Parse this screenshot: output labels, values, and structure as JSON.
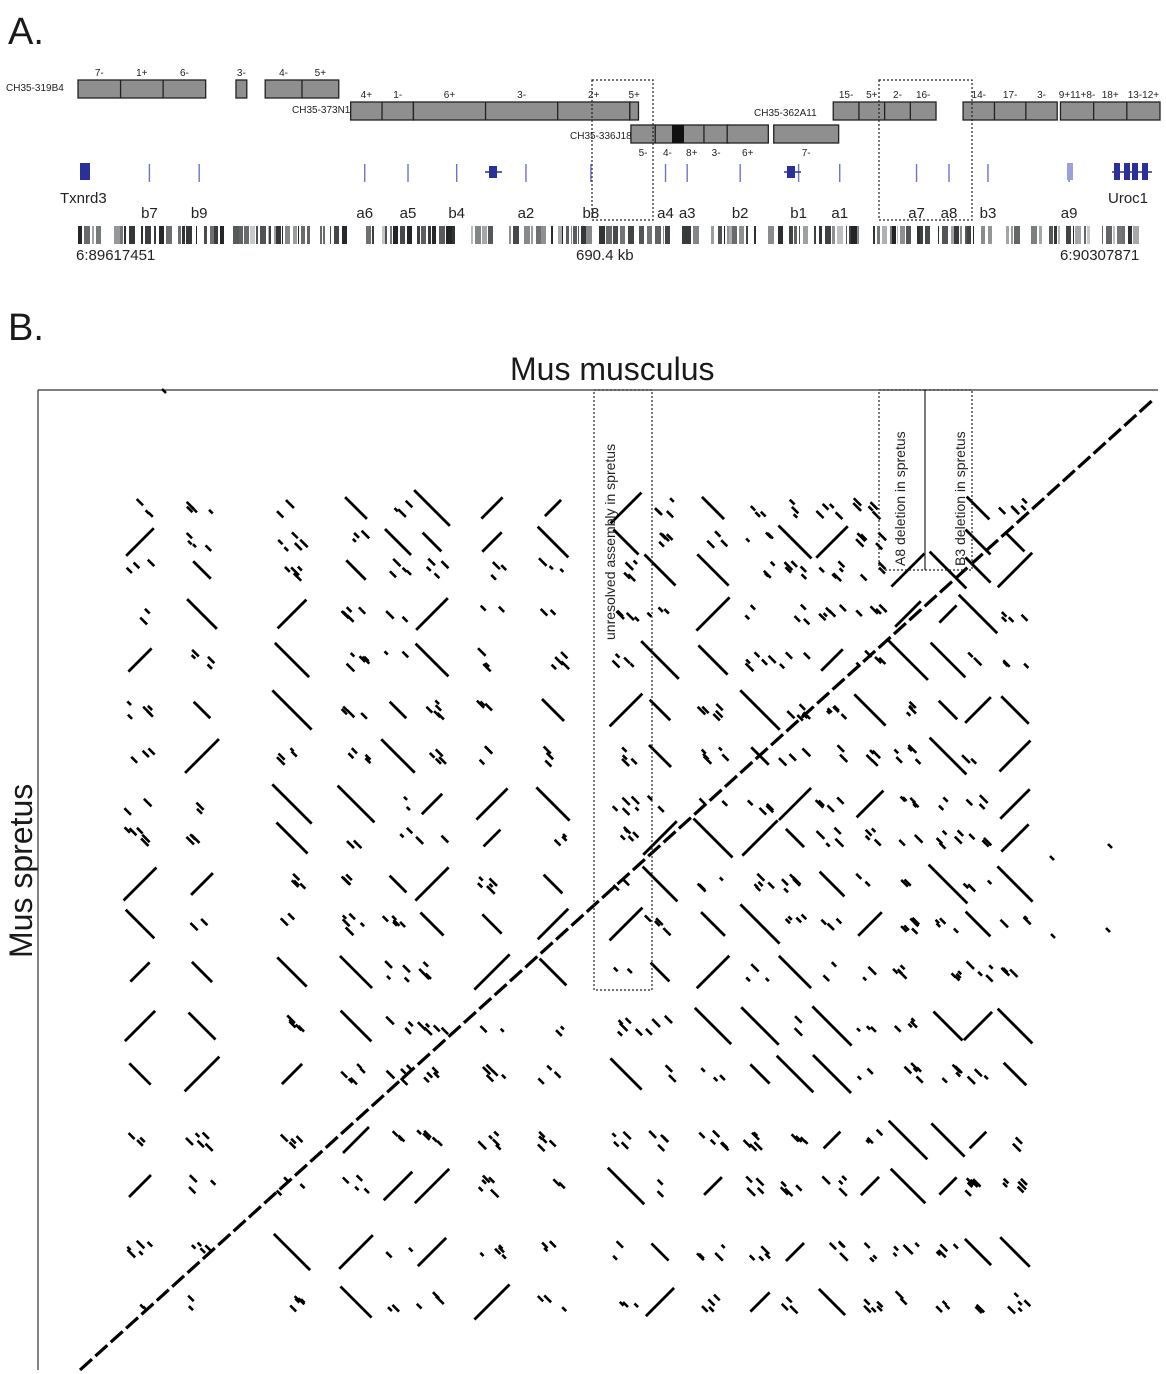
{
  "panels": {
    "a": "A.",
    "b": "B."
  },
  "clones": [
    {
      "name": "CH35-319B4",
      "blocks": [
        {
          "start": 0,
          "end": 0.118,
          "labels": [
            "7-",
            "1+",
            "6-"
          ]
        },
        {
          "start": 0.146,
          "end": 0.156,
          "labels": [
            "3-"
          ]
        },
        {
          "start": 0.173,
          "end": 0.241,
          "labels": [
            "4-",
            "5+"
          ]
        }
      ]
    },
    {
      "name": "CH35-373N1",
      "blocks": [
        {
          "start": 0.252,
          "end": 0.31,
          "labels": [
            "4+",
            "1-"
          ]
        },
        {
          "start": 0.31,
          "end": 0.51,
          "labels": [
            "6+",
            "3-",
            "2+"
          ]
        },
        {
          "start": 0.51,
          "end": 0.518,
          "labels": [
            "5+"
          ]
        }
      ]
    },
    {
      "name": "CH35-336J18",
      "blocks": [
        {
          "start": 0.511,
          "end": 0.601,
          "labels": [
            "5-",
            "4-",
            "8+",
            "3-"
          ]
        },
        {
          "start": 0.6,
          "end": 0.638,
          "labels": [
            "6+"
          ]
        },
        {
          "start": 0.643,
          "end": 0.703,
          "labels": [
            "7-"
          ]
        }
      ]
    },
    {
      "name": "CH35-362A11",
      "blocks": [
        {
          "start": 0.698,
          "end": 0.793,
          "labels": [
            "15-",
            "5+",
            "2-",
            "16-"
          ]
        },
        {
          "start": 0.818,
          "end": 0.905,
          "labels": [
            "14-",
            "17-",
            "3-"
          ]
        },
        {
          "start": 0.908,
          "end": 1.0,
          "labels": [
            "9+11+8-",
            "18+",
            "13-12+"
          ]
        }
      ]
    }
  ],
  "genes": [
    {
      "name": "Txnrd3",
      "pos": 0.0
    },
    {
      "name": "Uroc1",
      "pos": 0.97
    }
  ],
  "segments": [
    "b7",
    "b9",
    "a6",
    "a5",
    "b4",
    "a2",
    "b8",
    "a4",
    "a3",
    "b2",
    "b1",
    "a1",
    "a7",
    "a8",
    "b3",
    "a9"
  ],
  "segment_positions": [
    0.066,
    0.112,
    0.265,
    0.305,
    0.35,
    0.414,
    0.474,
    0.543,
    0.563,
    0.612,
    0.666,
    0.704,
    0.775,
    0.805,
    0.841,
    0.916
  ],
  "coordinates": {
    "left": "6:89617451",
    "center": "690.4 kb",
    "right": "6:90307871"
  },
  "dotplot": {
    "x_label": "Mus musculus",
    "y_label": "Mus spretus",
    "annotations": [
      {
        "text": "unresolved assembly in spretus",
        "x_range": [
          0.49,
          0.543
        ],
        "y_range": [
          0,
          0.785
        ]
      },
      {
        "text": "A8 deletion in spretus",
        "x_range": [
          0.75,
          0.792
        ],
        "y_range": [
          0,
          0.235
        ]
      },
      {
        "text": "B3 deletion in spretus",
        "x_range": [
          0.792,
          0.833
        ],
        "y_range": [
          0,
          0.235
        ]
      }
    ]
  }
}
